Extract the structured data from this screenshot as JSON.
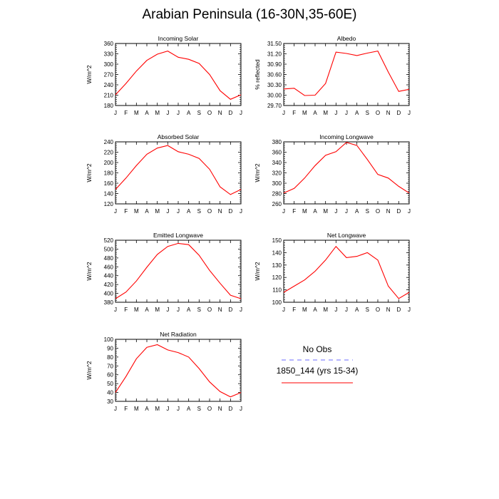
{
  "figure": {
    "title": "Arabian Peninsula (16-30N,35-60E)",
    "line_color": "#ff0000",
    "obs_color": "#6b6bff"
  },
  "legend": {
    "obs_label": "No Obs",
    "model_label": "1850_144 (yrs 15-34)"
  },
  "chart_data": [
    {
      "type": "line",
      "title": "Incoming Solar",
      "ylabel": "W/m^2",
      "ylim": [
        180,
        360
      ],
      "yticks": [
        "180",
        "210",
        "240",
        "270",
        "300",
        "330",
        "360"
      ],
      "categories": [
        "J",
        "F",
        "M",
        "A",
        "M",
        "J",
        "J",
        "A",
        "S",
        "O",
        "N",
        "D",
        "J"
      ],
      "series": [
        {
          "values": [
            211,
            244,
            280,
            311,
            329,
            338,
            320,
            314,
            302,
            270,
            223,
            198,
            211
          ]
        }
      ]
    },
    {
      "type": "line",
      "title": "Albedo",
      "ylabel": "% reflected",
      "ylim": [
        29.7,
        31.5
      ],
      "yticks": [
        "29.70",
        "30.00",
        "30.30",
        "30.60",
        "30.90",
        "31.20",
        "31.50"
      ],
      "categories": [
        "J",
        "F",
        "M",
        "A",
        "M",
        "J",
        "J",
        "A",
        "S",
        "O",
        "N",
        "D",
        "J"
      ],
      "series": [
        {
          "values": [
            30.18,
            30.2,
            29.99,
            30.0,
            30.34,
            31.25,
            31.21,
            31.15,
            31.22,
            31.28,
            30.67,
            30.11,
            30.17
          ]
        }
      ]
    },
    {
      "type": "line",
      "title": "Absorbed Solar",
      "ylabel": "W/m^2",
      "ylim": [
        120,
        240
      ],
      "yticks": [
        "120",
        "140",
        "160",
        "180",
        "200",
        "220",
        "240"
      ],
      "categories": [
        "J",
        "F",
        "M",
        "A",
        "M",
        "J",
        "J",
        "A",
        "S",
        "O",
        "N",
        "D",
        "J"
      ],
      "series": [
        {
          "values": [
            148,
            170,
            194,
            216,
            228,
            233,
            221,
            216,
            208,
            187,
            153,
            138,
            148
          ]
        }
      ]
    },
    {
      "type": "line",
      "title": "Incoming Longwave",
      "ylabel": "W/m^2",
      "ylim": [
        260,
        380
      ],
      "yticks": [
        "260",
        "280",
        "300",
        "320",
        "340",
        "360",
        "380"
      ],
      "categories": [
        "J",
        "F",
        "M",
        "A",
        "M",
        "J",
        "J",
        "A",
        "S",
        "O",
        "N",
        "D",
        "J"
      ],
      "series": [
        {
          "values": [
            281,
            290,
            310,
            334,
            354,
            361,
            379,
            373,
            346,
            317,
            310,
            294,
            281
          ]
        }
      ]
    },
    {
      "type": "line",
      "title": "Emitted Longwave",
      "ylabel": "W/m^2",
      "ylim": [
        380,
        520
      ],
      "yticks": [
        "380",
        "400",
        "420",
        "440",
        "460",
        "480",
        "500",
        "520"
      ],
      "categories": [
        "J",
        "F",
        "M",
        "A",
        "M",
        "J",
        "J",
        "A",
        "S",
        "O",
        "N",
        "D",
        "J"
      ],
      "series": [
        {
          "values": [
            388,
            403,
            428,
            459,
            488,
            506,
            513,
            510,
            486,
            452,
            423,
            396,
            388
          ]
        }
      ]
    },
    {
      "type": "line",
      "title": "Net Longwave",
      "ylabel": "W/m^2",
      "ylim": [
        100,
        150
      ],
      "yticks": [
        "100",
        "110",
        "120",
        "130",
        "140",
        "150"
      ],
      "categories": [
        "J",
        "F",
        "M",
        "A",
        "M",
        "J",
        "J",
        "A",
        "S",
        "O",
        "N",
        "D",
        "J"
      ],
      "series": [
        {
          "values": [
            108,
            113,
            118,
            125,
            134,
            145,
            136,
            137,
            140,
            134,
            113,
            103,
            108
          ]
        }
      ]
    },
    {
      "type": "line",
      "title": "Net Radiation",
      "ylabel": "W/m^2",
      "ylim": [
        30,
        100
      ],
      "yticks": [
        "30",
        "40",
        "50",
        "60",
        "70",
        "80",
        "90",
        "100"
      ],
      "categories": [
        "J",
        "F",
        "M",
        "A",
        "M",
        "J",
        "J",
        "A",
        "S",
        "O",
        "N",
        "D",
        "J"
      ],
      "series": [
        {
          "values": [
            40,
            58,
            78,
            91,
            94,
            88,
            85,
            80,
            67,
            52,
            41,
            35,
            40
          ]
        }
      ]
    }
  ]
}
